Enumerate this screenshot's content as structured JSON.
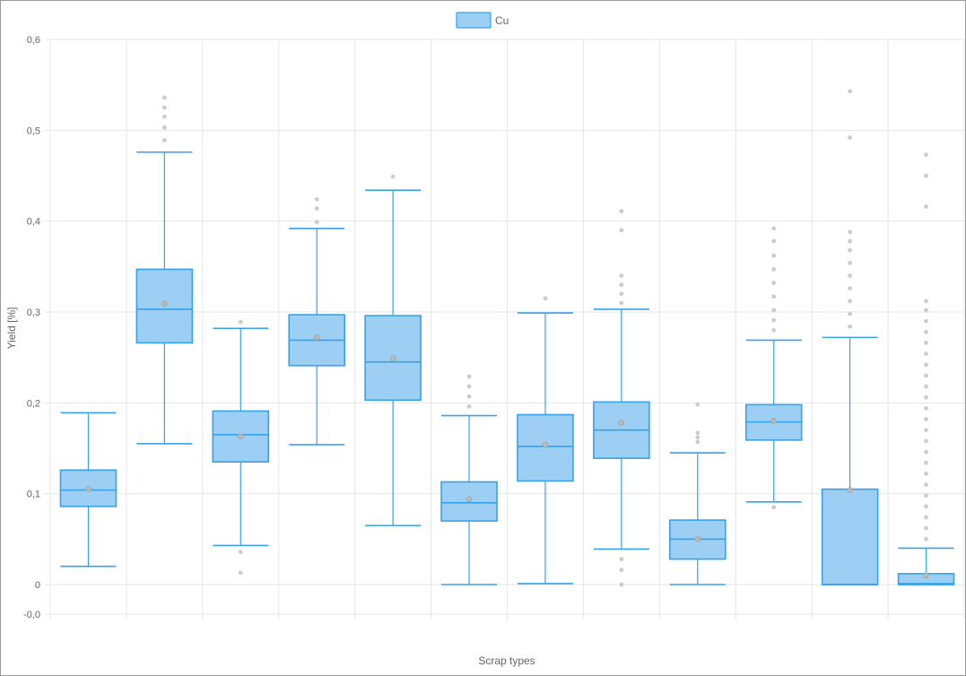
{
  "chart_data": {
    "type": "boxplot",
    "title": "",
    "xlabel": "Scrap types",
    "ylabel": "Yield [%]",
    "ylim": [
      -0.035,
      0.6
    ],
    "yticks": [
      {
        "value": 0.6,
        "label": "0,6"
      },
      {
        "value": 0.5,
        "label": "0,5"
      },
      {
        "value": 0.4,
        "label": "0,4"
      },
      {
        "value": 0.3,
        "label": "0,3"
      },
      {
        "value": 0.2,
        "label": "0,2"
      },
      {
        "value": 0.1,
        "label": "0,1"
      },
      {
        "value": 0,
        "label": "0"
      },
      {
        "value": -0.033,
        "label": "-0,0"
      }
    ],
    "grid": true,
    "legend": {
      "position": "top-center",
      "entries": [
        "Cu"
      ]
    },
    "series": [
      {
        "name": "Cu",
        "color": "#36a2eb",
        "fill": "#9ccff3",
        "boxes": [
          {
            "min": 0.02,
            "q1": 0.086,
            "median": 0.104,
            "q3": 0.126,
            "max": 0.189,
            "mean": 0.105,
            "outliers": []
          },
          {
            "min": 0.155,
            "q1": 0.266,
            "median": 0.303,
            "q3": 0.347,
            "max": 0.476,
            "mean": 0.309,
            "outliers": [
              0.489,
              0.503,
              0.515,
              0.525,
              0.536
            ]
          },
          {
            "min": 0.043,
            "q1": 0.135,
            "median": 0.165,
            "q3": 0.191,
            "max": 0.282,
            "mean": 0.163,
            "outliers": [
              0.289,
              0.036,
              0.013
            ]
          },
          {
            "min": 0.154,
            "q1": 0.241,
            "median": 0.269,
            "q3": 0.297,
            "max": 0.392,
            "mean": 0.272,
            "outliers": [
              0.399,
              0.414,
              0.424
            ]
          },
          {
            "min": 0.065,
            "q1": 0.203,
            "median": 0.245,
            "q3": 0.296,
            "max": 0.434,
            "mean": 0.249,
            "outliers": [
              0.449
            ]
          },
          {
            "min": 0,
            "q1": 0.07,
            "median": 0.09,
            "q3": 0.113,
            "max": 0.186,
            "mean": 0.094,
            "outliers": [
              0.196,
              0.207,
              0.218,
              0.229
            ]
          },
          {
            "min": 0.001,
            "q1": 0.114,
            "median": 0.152,
            "q3": 0.187,
            "max": 0.299,
            "mean": 0.154,
            "outliers": [
              0.315
            ]
          },
          {
            "min": 0.039,
            "q1": 0.139,
            "median": 0.17,
            "q3": 0.201,
            "max": 0.303,
            "mean": 0.178,
            "outliers": [
              0.31,
              0.32,
              0.33,
              0.34,
              0.39,
              0.411,
              0.028,
              0.016,
              0
            ]
          },
          {
            "min": 0,
            "q1": 0.028,
            "median": 0.05,
            "q3": 0.071,
            "max": 0.145,
            "mean": 0.05,
            "outliers": [
              0.157,
              0.162,
              0.167,
              0.198
            ]
          },
          {
            "min": 0.091,
            "q1": 0.159,
            "median": 0.179,
            "q3": 0.198,
            "max": 0.269,
            "mean": 0.18,
            "outliers": [
              0.28,
              0.291,
              0.302,
              0.317,
              0.332,
              0.347,
              0.362,
              0.378,
              0.392,
              0.085
            ]
          },
          {
            "min": 0,
            "q1": 0,
            "median": 0,
            "q3": 0.105,
            "max": 0.272,
            "mean": 0.104,
            "outliers": [
              0.284,
              0.298,
              0.312,
              0.326,
              0.34,
              0.354,
              0.368,
              0.378,
              0.388,
              0.492,
              0.543
            ]
          },
          {
            "min": 0,
            "q1": 0,
            "median": 0.001,
            "q3": 0.012,
            "max": 0.04,
            "mean": 0.01,
            "outliers": [
              0.05,
              0.062,
              0.074,
              0.086,
              0.098,
              0.11,
              0.122,
              0.134,
              0.146,
              0.158,
              0.17,
              0.182,
              0.194,
              0.206,
              0.218,
              0.23,
              0.242,
              0.254,
              0.266,
              0.278,
              0.29,
              0.302,
              0.312,
              0.416,
              0.45,
              0.473
            ]
          }
        ]
      }
    ]
  }
}
